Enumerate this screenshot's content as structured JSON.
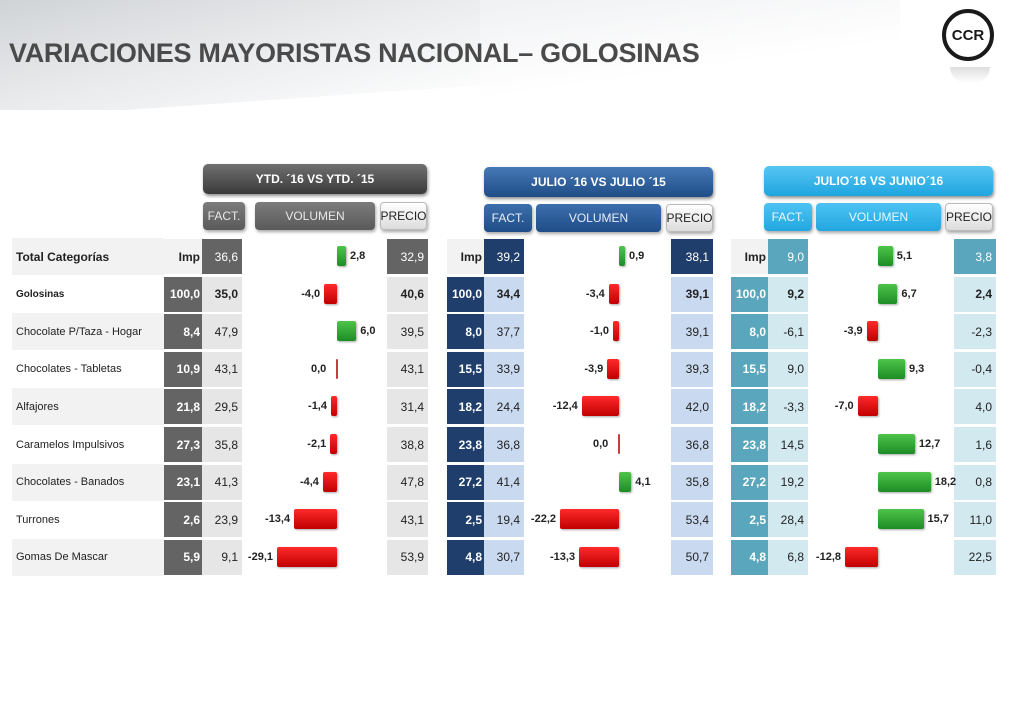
{
  "title": "VARIACIONES MAYORISTAS NACIONAL– GOLOSINAS",
  "logo_text": "CCR",
  "colors": {
    "ytd_dark": "#646464",
    "ytd_light": "#e6e6e6",
    "jul_dark": "#1f3e6b",
    "jul_light": "#c9daf0",
    "jun_dark": "#5aa6bc",
    "jun_light": "#d3e9f0",
    "positive_bar": "#2ea335",
    "negative_bar": "#e60000"
  },
  "sections": [
    {
      "header": "YTD. ´16 VS YTD. ´15",
      "fact": "FACT.",
      "volumen": "VOLUMEN",
      "precio": "PRECIO"
    },
    {
      "header": "JULIO ´16 VS  JULIO ´15",
      "fact": "FACT.",
      "volumen": "VOLUMEN",
      "precio": "PRECIO"
    },
    {
      "header": "JULIO´16 VS JUNIO´16",
      "fact": "FACT.",
      "volumen": "VOLUMEN",
      "precio": "PRECIO"
    }
  ],
  "rows": [
    {
      "label": "Total  Categorías",
      "ytd": {
        "imp": "Imp",
        "fact": "36,6",
        "vol": "2,8",
        "precio": "32,9"
      },
      "jul": {
        "imp": "Imp",
        "fact": "39,2",
        "vol": "0,9",
        "precio": "38,1"
      },
      "jun": {
        "imp": "Imp",
        "fact": "9,0",
        "vol": "5,1",
        "precio": "3,8"
      }
    },
    {
      "label": "Golosinas",
      "ytd": {
        "imp": "100,0",
        "fact": "35,0",
        "vol": "-4,0",
        "precio": "40,6"
      },
      "jul": {
        "imp": "100,0",
        "fact": "34,4",
        "vol": "-3,4",
        "precio": "39,1"
      },
      "jun": {
        "imp": "100,0",
        "fact": "9,2",
        "vol": "6,7",
        "precio": "2,4"
      }
    },
    {
      "label": "Chocolate P/Taza - Hogar",
      "ytd": {
        "imp": "8,4",
        "fact": "47,9",
        "vol": "6,0",
        "precio": "39,5"
      },
      "jul": {
        "imp": "8,0",
        "fact": "37,7",
        "vol": "-1,0",
        "precio": "39,1"
      },
      "jun": {
        "imp": "8,0",
        "fact": "-6,1",
        "vol": "-3,9",
        "precio": "-2,3"
      }
    },
    {
      "label": "Chocolates - Tabletas",
      "ytd": {
        "imp": "10,9",
        "fact": "43,1",
        "vol": "0,0",
        "precio": "43,1"
      },
      "jul": {
        "imp": "15,5",
        "fact": "33,9",
        "vol": "-3,9",
        "precio": "39,3"
      },
      "jun": {
        "imp": "15,5",
        "fact": "9,0",
        "vol": "9,3",
        "precio": "-0,4"
      }
    },
    {
      "label": "Alfajores",
      "ytd": {
        "imp": "21,8",
        "fact": "29,5",
        "vol": "-1,4",
        "precio": "31,4"
      },
      "jul": {
        "imp": "18,2",
        "fact": "24,4",
        "vol": "-12,4",
        "precio": "42,0"
      },
      "jun": {
        "imp": "18,2",
        "fact": "-3,3",
        "vol": "-7,0",
        "precio": "4,0"
      }
    },
    {
      "label": "Caramelos Impulsivos",
      "ytd": {
        "imp": "27,3",
        "fact": "35,8",
        "vol": "-2,1",
        "precio": "38,8"
      },
      "jul": {
        "imp": "23,8",
        "fact": "36,8",
        "vol": "0,0",
        "precio": "36,8"
      },
      "jun": {
        "imp": "23,8",
        "fact": "14,5",
        "vol": "12,7",
        "precio": "1,6"
      }
    },
    {
      "label": "Chocolates - Banados",
      "ytd": {
        "imp": "23,1",
        "fact": "41,3",
        "vol": "-4,4",
        "precio": "47,8"
      },
      "jul": {
        "imp": "27,2",
        "fact": "41,4",
        "vol": "4,1",
        "precio": "35,8"
      },
      "jun": {
        "imp": "27,2",
        "fact": "19,2",
        "vol": "18,2",
        "precio": "0,8"
      }
    },
    {
      "label": "Turrones",
      "ytd": {
        "imp": "2,6",
        "fact": "23,9",
        "vol": "-13,4",
        "precio": "43,1"
      },
      "jul": {
        "imp": "2,5",
        "fact": "19,4",
        "vol": "-22,2",
        "precio": "53,4"
      },
      "jun": {
        "imp": "2,5",
        "fact": "28,4",
        "vol": "15,7",
        "precio": "11,0"
      }
    },
    {
      "label": "Gomas De Mascar",
      "ytd": {
        "imp": "5,9",
        "fact": "9,1",
        "vol": "-29,1",
        "precio": "53,9"
      },
      "jul": {
        "imp": "4,8",
        "fact": "30,7",
        "vol": "-13,3",
        "precio": "50,7"
      },
      "jun": {
        "imp": "4,8",
        "fact": "6,8",
        "vol": "-12,8",
        "precio": "22,5"
      }
    }
  ]
}
